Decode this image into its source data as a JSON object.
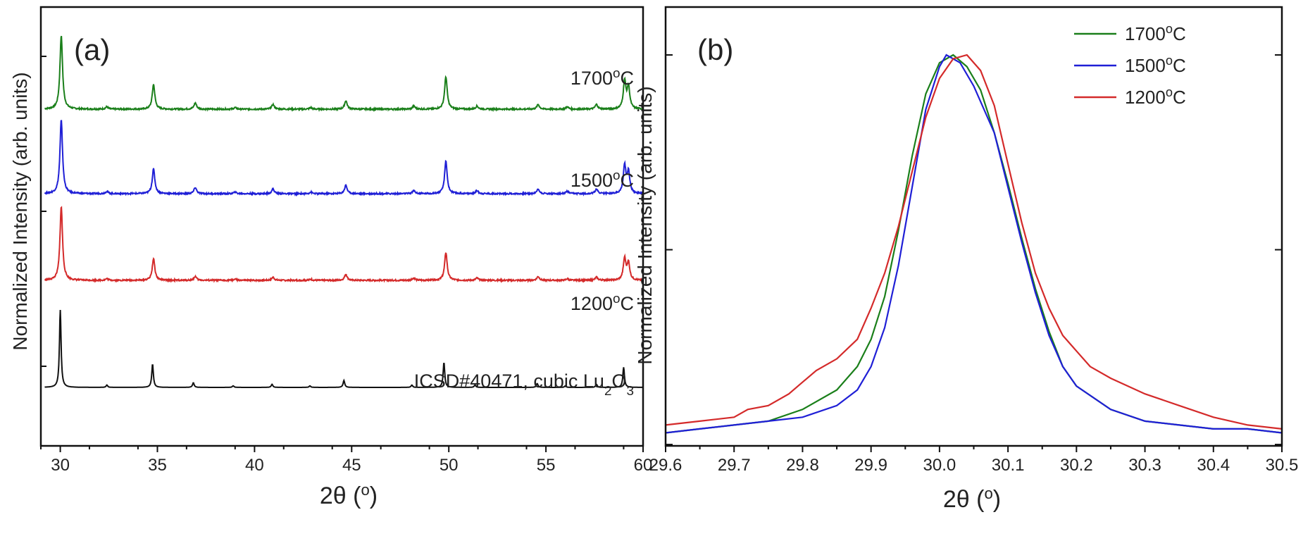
{
  "chart_data": [
    {
      "panel_label": "(a)",
      "type": "line",
      "xlabel": "2θ (°)",
      "ylabel": "Normalized Intensity (arb. units)",
      "xlim": [
        29,
        60
      ],
      "x_ticks": [
        30,
        35,
        40,
        45,
        50,
        55,
        60
      ],
      "y_tick_labels": "none",
      "legend": "none",
      "series": [
        {
          "name": "1700°C",
          "color": "#1a7f1a",
          "offset": 3,
          "label_pos": [
            35,
            3.62
          ],
          "peaks": [
            [
              30.05,
              0.95
            ],
            [
              32.4,
              0.03
            ],
            [
              34.8,
              0.32
            ],
            [
              36.95,
              0.08
            ],
            [
              39.0,
              0.02
            ],
            [
              40.95,
              0.06
            ],
            [
              42.9,
              0.02
            ],
            [
              44.7,
              0.11
            ],
            [
              48.2,
              0.04
            ],
            [
              49.85,
              0.42
            ],
            [
              51.45,
              0.04
            ],
            [
              54.6,
              0.06
            ],
            [
              56.1,
              0.03
            ],
            [
              57.6,
              0.06
            ],
            [
              59.05,
              0.36
            ],
            [
              59.25,
              0.28
            ]
          ]
        },
        {
          "name": "1500°C",
          "color": "#1f1fd6",
          "offset": 2,
          "label_pos": [
            35,
            2.62
          ],
          "peaks": [
            [
              30.05,
              0.95
            ],
            [
              32.4,
              0.03
            ],
            [
              34.8,
              0.32
            ],
            [
              36.95,
              0.08
            ],
            [
              39.0,
              0.02
            ],
            [
              40.95,
              0.06
            ],
            [
              42.9,
              0.02
            ],
            [
              44.7,
              0.11
            ],
            [
              48.2,
              0.04
            ],
            [
              49.85,
              0.42
            ],
            [
              51.45,
              0.04
            ],
            [
              54.6,
              0.06
            ],
            [
              56.1,
              0.03
            ],
            [
              57.6,
              0.06
            ],
            [
              59.05,
              0.36
            ],
            [
              59.25,
              0.28
            ]
          ]
        },
        {
          "name": "1200°C",
          "color": "#d42a2a",
          "offset": 1,
          "label_pos": [
            35,
            1.58
          ],
          "peaks": [
            [
              30.05,
              0.95
            ],
            [
              32.4,
              0.02
            ],
            [
              34.8,
              0.28
            ],
            [
              36.95,
              0.05
            ],
            [
              39.0,
              0.015
            ],
            [
              40.95,
              0.04
            ],
            [
              42.9,
              0.015
            ],
            [
              44.7,
              0.08
            ],
            [
              48.2,
              0.03
            ],
            [
              49.85,
              0.36
            ],
            [
              51.45,
              0.03
            ],
            [
              54.6,
              0.05
            ],
            [
              56.1,
              0.02
            ],
            [
              57.6,
              0.04
            ],
            [
              59.05,
              0.28
            ],
            [
              59.25,
              0.22
            ]
          ]
        },
        {
          "name": "ICSD#40471, cubic Lu2O3",
          "color": "#111111",
          "offset": 0,
          "label_pos": [
            38,
            0.62
          ],
          "peaks": [
            [
              30.0,
              1.0
            ],
            [
              32.4,
              0.03
            ],
            [
              34.75,
              0.3
            ],
            [
              36.85,
              0.06
            ],
            [
              38.9,
              0.02
            ],
            [
              40.9,
              0.04
            ],
            [
              42.85,
              0.02
            ],
            [
              44.6,
              0.09
            ],
            [
              48.1,
              0.03
            ],
            [
              49.75,
              0.32
            ],
            [
              51.35,
              0.03
            ],
            [
              54.55,
              0.05
            ],
            [
              56.0,
              0.02
            ],
            [
              57.6,
              0.04
            ],
            [
              59.0,
              0.26
            ]
          ]
        }
      ]
    },
    {
      "panel_label": "(b)",
      "type": "line",
      "xlabel": "2θ (°)",
      "ylabel": "Normalized Intensity (arb. units)",
      "xlim": [
        29.6,
        30.5
      ],
      "x_ticks": [
        29.6,
        29.7,
        29.8,
        29.9,
        30.0,
        30.1,
        30.2,
        30.3,
        30.4,
        30.5
      ],
      "ylim": [
        0,
        1.1
      ],
      "y_tick_labels": "none",
      "legend": "top-right",
      "series": [
        {
          "name": "1700°C",
          "color": "#1a7f1a",
          "x": [
            29.6,
            29.65,
            29.7,
            29.75,
            29.8,
            29.85,
            29.88,
            29.9,
            29.92,
            29.94,
            29.96,
            29.98,
            30.0,
            30.02,
            30.04,
            30.06,
            30.08,
            30.1,
            30.12,
            30.14,
            30.16,
            30.18,
            30.2,
            30.25,
            30.3,
            30.35,
            30.4,
            30.45,
            30.5
          ],
          "y": [
            0.03,
            0.04,
            0.05,
            0.06,
            0.09,
            0.14,
            0.2,
            0.27,
            0.38,
            0.55,
            0.74,
            0.9,
            0.98,
            1.0,
            0.97,
            0.91,
            0.8,
            0.67,
            0.53,
            0.4,
            0.29,
            0.2,
            0.15,
            0.09,
            0.06,
            0.05,
            0.04,
            0.04,
            0.03
          ]
        },
        {
          "name": "1500°C",
          "color": "#1f1fd6",
          "x": [
            29.6,
            29.65,
            29.7,
            29.75,
            29.8,
            29.85,
            29.88,
            29.9,
            29.92,
            29.94,
            29.96,
            29.98,
            30.0,
            30.01,
            30.03,
            30.05,
            30.08,
            30.1,
            30.12,
            30.14,
            30.16,
            30.18,
            30.2,
            30.25,
            30.3,
            30.35,
            30.4,
            30.45,
            30.5
          ],
          "y": [
            0.03,
            0.04,
            0.05,
            0.06,
            0.07,
            0.1,
            0.14,
            0.2,
            0.3,
            0.46,
            0.66,
            0.86,
            0.97,
            1.0,
            0.98,
            0.92,
            0.8,
            0.66,
            0.52,
            0.39,
            0.28,
            0.2,
            0.15,
            0.09,
            0.06,
            0.05,
            0.04,
            0.04,
            0.03
          ]
        },
        {
          "name": "1200°C",
          "color": "#d42a2a",
          "x": [
            29.6,
            29.65,
            29.7,
            29.72,
            29.75,
            29.78,
            29.8,
            29.82,
            29.85,
            29.88,
            29.9,
            29.92,
            29.94,
            29.96,
            29.98,
            30.0,
            30.02,
            30.04,
            30.06,
            30.08,
            30.1,
            30.12,
            30.14,
            30.16,
            30.18,
            30.2,
            30.22,
            30.25,
            30.3,
            30.35,
            30.4,
            30.45,
            30.5
          ],
          "y": [
            0.05,
            0.06,
            0.07,
            0.09,
            0.1,
            0.13,
            0.16,
            0.19,
            0.22,
            0.27,
            0.35,
            0.44,
            0.56,
            0.7,
            0.84,
            0.94,
            0.99,
            1.0,
            0.96,
            0.87,
            0.72,
            0.57,
            0.44,
            0.35,
            0.28,
            0.24,
            0.2,
            0.17,
            0.13,
            0.1,
            0.07,
            0.05,
            0.04
          ]
        }
      ]
    }
  ]
}
